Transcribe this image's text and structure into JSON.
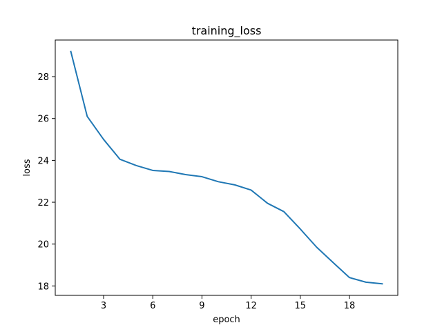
{
  "chart_data": {
    "type": "line",
    "title": "training_loss",
    "xlabel": "epoch",
    "ylabel": "loss",
    "xlim": [
      0.05,
      20.95
    ],
    "ylim": [
      17.55,
      29.75
    ],
    "xticks": [
      3,
      6,
      9,
      12,
      15,
      18
    ],
    "yticks": [
      18,
      20,
      22,
      24,
      26,
      28
    ],
    "grid": false,
    "line_color": "#1f77b4",
    "series": [
      {
        "x": [
          1,
          2,
          3,
          4,
          5,
          6,
          7,
          8,
          9,
          10,
          11,
          12,
          13,
          14,
          15,
          16,
          17,
          18,
          19,
          20
        ],
        "values": [
          29.2,
          26.1,
          25.0,
          24.05,
          23.75,
          23.52,
          23.47,
          23.32,
          23.22,
          22.98,
          22.83,
          22.58,
          21.95,
          21.55,
          20.72,
          19.85,
          19.12,
          18.4,
          18.18,
          18.1
        ]
      }
    ]
  }
}
